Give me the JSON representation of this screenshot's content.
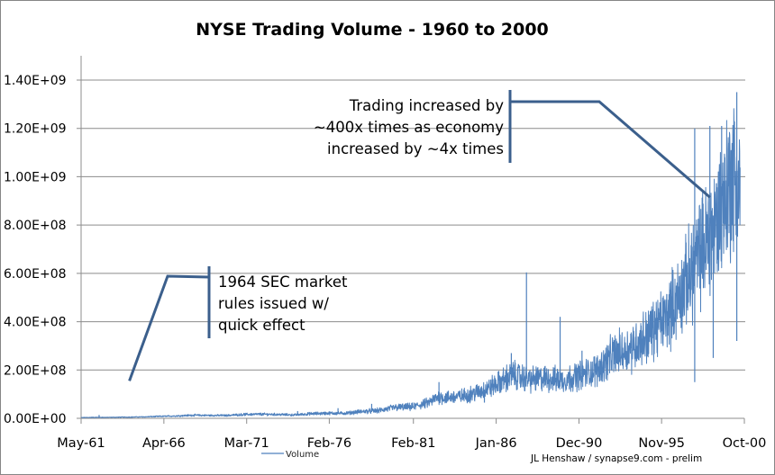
{
  "chart_data": {
    "type": "line",
    "title": "NYSE Trading Volume - 1960 to 2000",
    "xlabel": "",
    "ylabel": "",
    "x_range": [
      "May-61",
      "Oct-00"
    ],
    "ylim": [
      0,
      1400000000
    ],
    "grid": true,
    "y_ticks": [
      "0.00E+00",
      "2.00E+08",
      "4.00E+08",
      "6.00E+08",
      "8.00E+08",
      "1.00E+09",
      "1.20E+09",
      "1.40E+09"
    ],
    "y_tick_values": [
      0,
      200000000,
      400000000,
      600000000,
      800000000,
      1000000000,
      1200000000,
      1400000000
    ],
    "x_ticks": [
      "May-61",
      "Apr-66",
      "Mar-71",
      "Feb-76",
      "Feb-81",
      "Jan-86",
      "Dec-90",
      "Nov-95",
      "Oct-00"
    ],
    "x_tick_years": [
      1961.33,
      1966.25,
      1971.17,
      1976.08,
      1981.08,
      1986.0,
      1990.92,
      1995.83,
      2000.75
    ],
    "legend": {
      "position": "bottom",
      "entries": [
        "Volume"
      ]
    },
    "series": [
      {
        "name": "Volume",
        "color": "#4f81bd",
        "x": [
          1961.33,
          1962.0,
          1963.0,
          1964.0,
          1965.0,
          1966.0,
          1967.0,
          1968.0,
          1969.0,
          1970.0,
          1971.0,
          1972.0,
          1973.0,
          1974.0,
          1975.0,
          1976.0,
          1977.0,
          1978.0,
          1979.0,
          1980.0,
          1981.0,
          1982.0,
          1982.6,
          1983.0,
          1984.0,
          1985.0,
          1986.0,
          1987.0,
          1988.0,
          1989.0,
          1990.0,
          1991.0,
          1992.0,
          1993.0,
          1994.0,
          1995.0,
          1996.0,
          1997.0,
          1998.0,
          1999.0,
          2000.0,
          2000.5
        ],
        "values": [
          3000000,
          4000000,
          4000000,
          5000000,
          6000000,
          8000000,
          10000000,
          13000000,
          12000000,
          12000000,
          16000000,
          17000000,
          16000000,
          14000000,
          19000000,
          21000000,
          21000000,
          28000000,
          32000000,
          45000000,
          47000000,
          65000000,
          90000000,
          85000000,
          92000000,
          110000000,
          140000000,
          180000000,
          160000000,
          165000000,
          157000000,
          180000000,
          200000000,
          265000000,
          290000000,
          345000000,
          410000000,
          520000000,
          670000000,
          800000000,
          1000000000,
          950000000
        ]
      }
    ],
    "spikes": [
      {
        "x": 1962.4,
        "value": 14000000
      },
      {
        "x": 1974.2,
        "value": 30000000
      },
      {
        "x": 1976.6,
        "value": 42000000
      },
      {
        "x": 1978.6,
        "value": 60000000
      },
      {
        "x": 1982.6,
        "value": 150000000
      },
      {
        "x": 1986.9,
        "value": 270000000
      },
      {
        "x": 1987.8,
        "value": 604000000
      },
      {
        "x": 1989.8,
        "value": 420000000
      },
      {
        "x": 1991.1,
        "value": 280000000
      },
      {
        "x": 1994.0,
        "value": 350000000
      },
      {
        "x": 1995.2,
        "value": 445000000
      },
      {
        "x": 1997.8,
        "value": 1200000000
      },
      {
        "x": 1998.7,
        "value": 1210000000
      },
      {
        "x": 1999.4,
        "value": 1210000000
      },
      {
        "x": 1999.8,
        "value": 1140000000
      },
      {
        "x": 2000.3,
        "value": 1350000000
      }
    ],
    "dips": [
      {
        "x": 1997.8,
        "value": 150000000
      },
      {
        "x": 1998.9,
        "value": 250000000
      },
      {
        "x": 2000.3,
        "value": 320000000
      },
      {
        "x": 1985.3,
        "value": 65000000
      }
    ],
    "annotations": [
      {
        "id": "sec-rules",
        "lines": [
          "1964 SEC  market",
          "rules issued w/",
          "quick effect"
        ],
        "pointer_x": "1964.2",
        "pointer_value": 155000000
      },
      {
        "id": "growth",
        "lines": [
          "Trading increased by",
          "~400x times as economy",
          "increased by ~4x times"
        ],
        "pointer_x": "1998.7",
        "pointer_value": 915000000
      }
    ]
  },
  "credit": "JL Henshaw / synapse9.com - prelim"
}
